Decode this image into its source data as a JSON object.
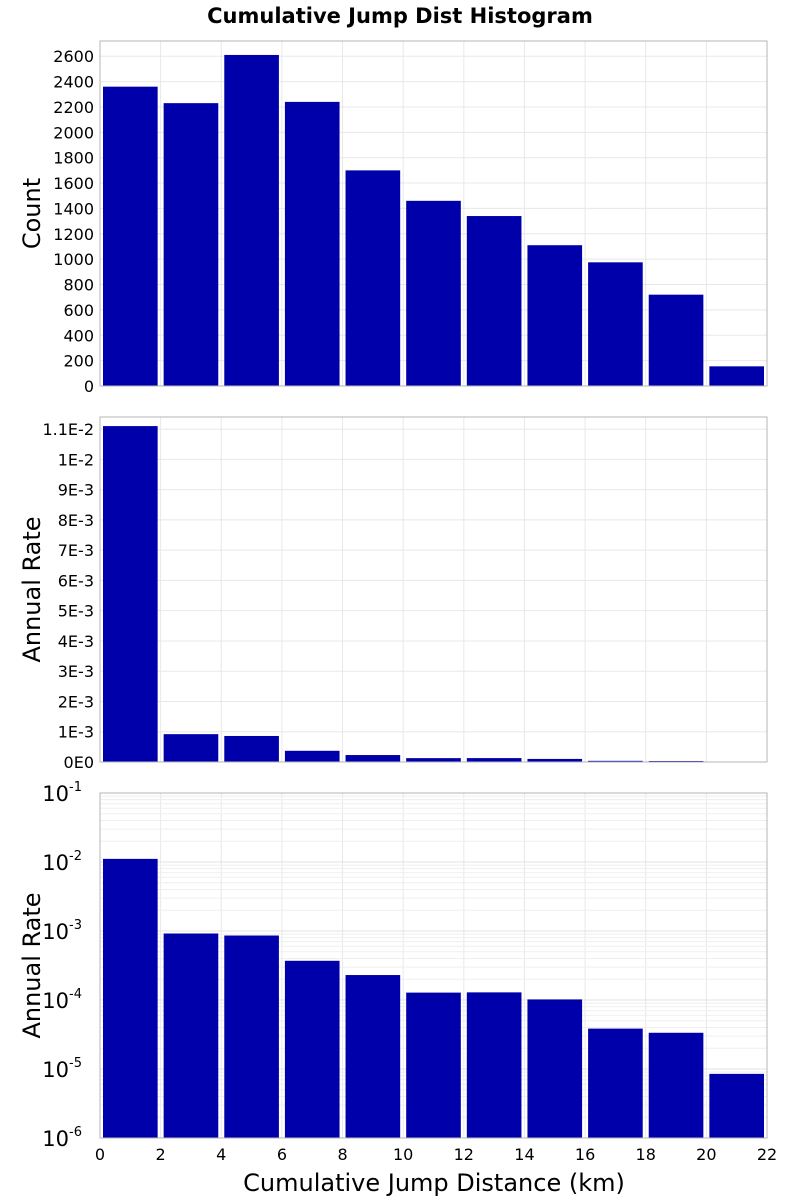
{
  "chart_data": {
    "type": "bar",
    "title": "Cumulative Jump Dist Histogram",
    "xlabel": "Cumulative Jump Distance (km)",
    "xlim": [
      0,
      22
    ],
    "x_ticks": [
      "0",
      "2",
      "4",
      "6",
      "8",
      "10",
      "12",
      "14",
      "16",
      "18",
      "20",
      "22"
    ],
    "bins": [
      [
        0,
        2
      ],
      [
        2,
        4
      ],
      [
        4,
        6
      ],
      [
        6,
        8
      ],
      [
        8,
        10
      ],
      [
        10,
        12
      ],
      [
        12,
        14
      ],
      [
        14,
        16
      ],
      [
        16,
        18
      ],
      [
        18,
        20
      ],
      [
        20,
        22
      ]
    ],
    "bar_color": "#0000AA",
    "grid": true,
    "panels": [
      {
        "ylabel": "Count",
        "scale": "linear",
        "ylim": [
          0,
          2720
        ],
        "y_ticks": [
          "0",
          "200",
          "400",
          "600",
          "800",
          "1000",
          "1200",
          "1400",
          "1600",
          "1800",
          "2000",
          "2200",
          "2400",
          "2600"
        ],
        "values": [
          2360,
          2230,
          2610,
          2240,
          1700,
          1460,
          1340,
          1110,
          975,
          720,
          155
        ]
      },
      {
        "ylabel": "Annual Rate",
        "scale": "linear",
        "ylim": [
          0,
          0.0114
        ],
        "y_ticks": [
          "0E0",
          "1E-3",
          "2E-3",
          "3E-3",
          "4E-3",
          "5E-3",
          "6E-3",
          "7E-3",
          "8E-3",
          "9E-3",
          "1E-2",
          "1.1E-2"
        ],
        "values": [
          0.0111,
          0.00092,
          0.00086,
          0.00037,
          0.00023,
          0.000128,
          0.000129,
          0.000102,
          3.85e-05,
          3.35e-05,
          8.5e-06
        ]
      },
      {
        "ylabel": "Annual Rate",
        "scale": "log",
        "ylim": [
          1e-06,
          0.1
        ],
        "y_ticks": [
          {
            "base": "10",
            "exp": "-1"
          },
          {
            "base": "10",
            "exp": "-2"
          },
          {
            "base": "10",
            "exp": "-3"
          },
          {
            "base": "10",
            "exp": "-4"
          },
          {
            "base": "10",
            "exp": "-5"
          },
          {
            "base": "10",
            "exp": "-6"
          }
        ],
        "values": [
          0.0111,
          0.00092,
          0.00086,
          0.00037,
          0.00023,
          0.000128,
          0.000129,
          0.000102,
          3.85e-05,
          3.35e-05,
          8.5e-06
        ]
      }
    ]
  }
}
